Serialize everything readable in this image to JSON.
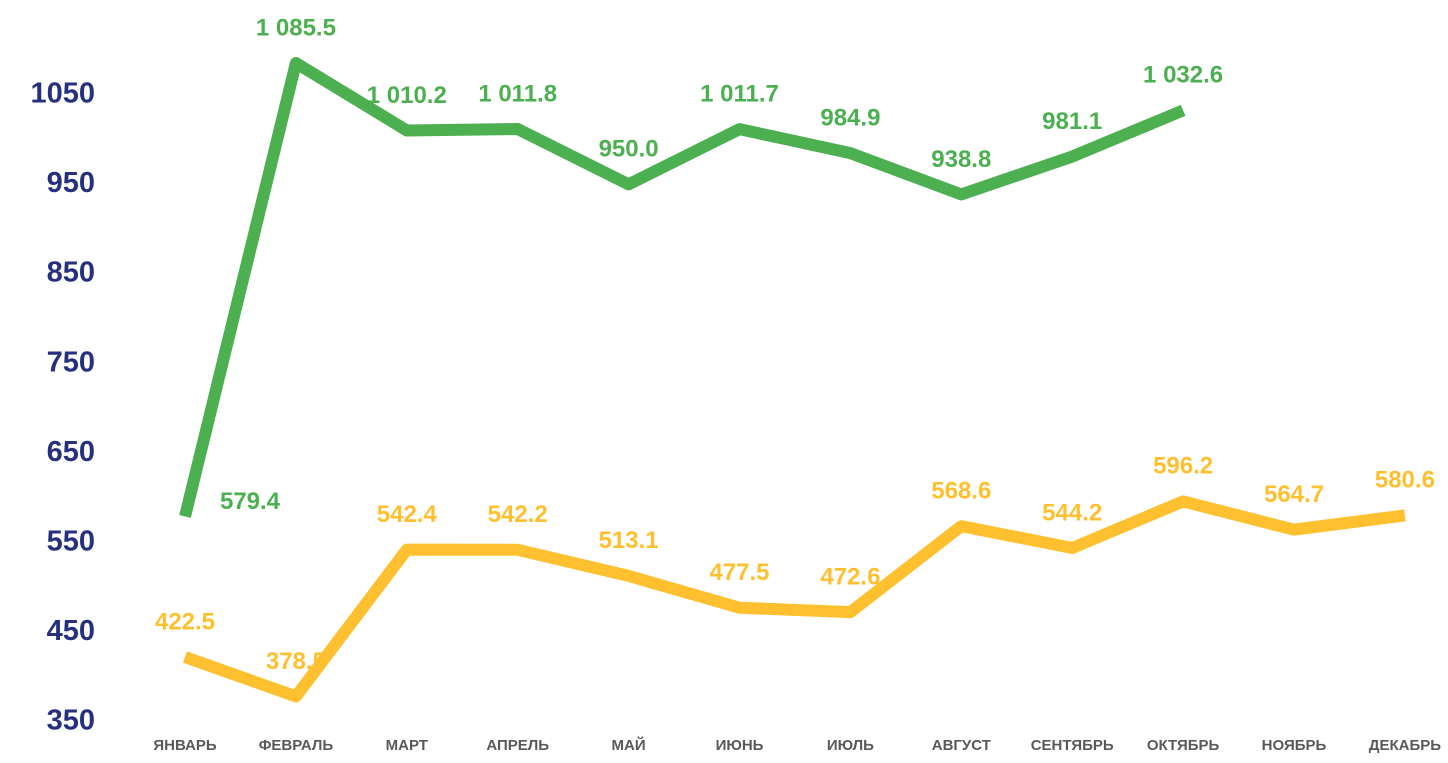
{
  "chart_data": {
    "type": "line",
    "categories": [
      "ЯНВАРЬ",
      "ФЕВРАЛЬ",
      "МАРТ",
      "АПРЕЛЬ",
      "МАЙ",
      "ИЮНЬ",
      "ИЮЛЬ",
      "АВГУСТ",
      "СЕНТЯБРЬ",
      "ОКТЯБРЬ",
      "НОЯБРЬ",
      "ДЕКАБРЬ"
    ],
    "series": [
      {
        "color": "#4caf50",
        "values": [
          579.4,
          1085.5,
          1010.2,
          1011.8,
          950.0,
          1011.7,
          984.9,
          938.8,
          981.1,
          1032.6,
          null,
          null
        ],
        "value_labels": [
          "579.4",
          "1 085.5",
          "1 010.2",
          "1 011.8",
          "950.0",
          "1 011.7",
          "984.9",
          "938.8",
          "981.1",
          "1 032.6",
          null,
          null
        ]
      },
      {
        "color": "#fec02f",
        "values": [
          422.5,
          378.5,
          542.4,
          542.2,
          513.1,
          477.5,
          472.6,
          568.6,
          544.2,
          596.2,
          564.7,
          580.6
        ]
      }
    ],
    "ylim": [
      350,
      1100
    ],
    "yticks": [
      350,
      450,
      550,
      650,
      750,
      850,
      950,
      1050
    ],
    "grid": false
  }
}
